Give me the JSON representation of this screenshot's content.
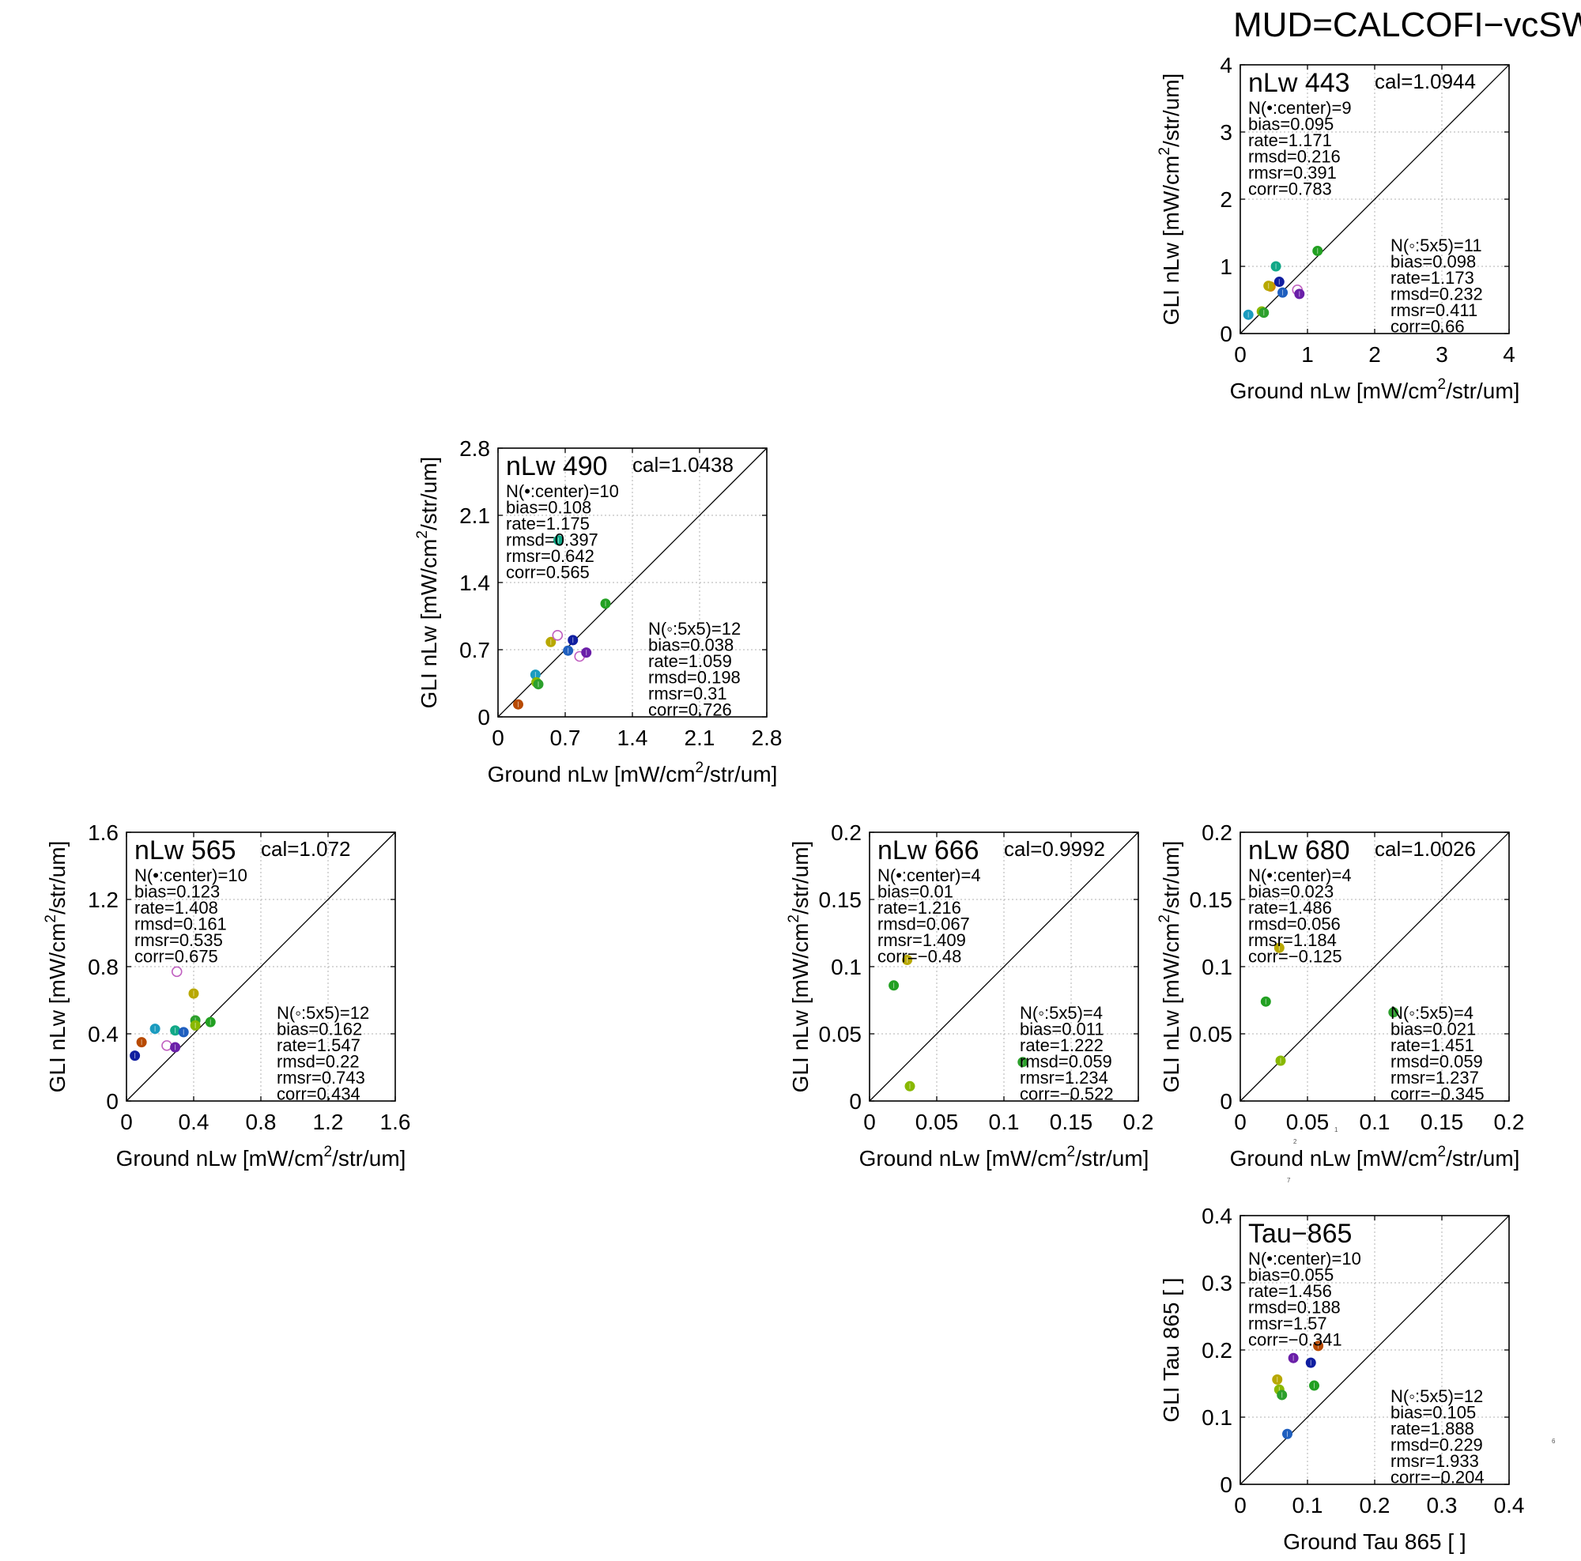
{
  "title": "MUD=CALCOFI−vcSW",
  "stray_marks": [
    "1",
    "2",
    "7",
    "6"
  ],
  "chart_data": [
    {
      "type": "scatter",
      "title": "nLw 443",
      "cal": "cal=1.0944",
      "xlabel": "Ground nLw [mW/cm²/str/um]",
      "ylabel": "GLI nLw [mW/cm²/str/um]",
      "xlim": [
        0,
        4
      ],
      "ylim": [
        0,
        4
      ],
      "xticks": [
        "0",
        "1",
        "2",
        "3",
        "4"
      ],
      "yticks": [
        "0",
        "1",
        "2",
        "3",
        "4"
      ],
      "grid": true,
      "one_to_one_line": true,
      "stats_center": [
        "N(•:center)=9",
        "bias=0.095",
        "rate=1.171",
        "rmsd=0.216",
        "rmsr=0.391",
        "corr=0.783"
      ],
      "stats_5x5": [
        "N(◦:5x5)=11",
        "bias=0.098",
        "rate=1.173",
        "rmsd=0.232",
        "rmsr=0.411",
        "corr=0.66"
      ],
      "points": [
        {
          "x": 0.12,
          "y": 0.28,
          "color": "#1a9bbf",
          "open": false
        },
        {
          "x": 0.32,
          "y": 0.33,
          "color": "#88b800",
          "open": false
        },
        {
          "x": 0.35,
          "y": 0.31,
          "color": "#2ca02c",
          "open": false
        },
        {
          "x": 0.45,
          "y": 0.7,
          "color": "#d08a00",
          "open": false
        },
        {
          "x": 0.42,
          "y": 0.71,
          "color": "#b8a800",
          "open": false
        },
        {
          "x": 0.53,
          "y": 1.0,
          "color": "#11a887",
          "open": false
        },
        {
          "x": 0.58,
          "y": 0.77,
          "color": "#101ea0",
          "open": false
        },
        {
          "x": 0.63,
          "y": 0.61,
          "color": "#1f5fbf",
          "open": false
        },
        {
          "x": 0.85,
          "y": 0.65,
          "color": "#c060c0",
          "open": true
        },
        {
          "x": 0.88,
          "y": 0.59,
          "color": "#6a1fa8",
          "open": false
        },
        {
          "x": 1.15,
          "y": 1.23,
          "color": "#22a022",
          "open": false
        }
      ]
    },
    {
      "type": "scatter",
      "title": "nLw 490",
      "cal": "cal=1.0438",
      "xlabel": "Ground nLw [mW/cm²/str/um]",
      "ylabel": "GLI nLw [mW/cm²/str/um]",
      "xlim": [
        0,
        2.8
      ],
      "ylim": [
        0,
        2.8
      ],
      "xticks": [
        "0",
        "0.7",
        "1.4",
        "2.1",
        "2.8"
      ],
      "yticks": [
        "0",
        "0.7",
        "1.4",
        "2.1",
        "2.8"
      ],
      "grid": true,
      "one_to_one_line": true,
      "stats_center": [
        "N(•:center)=10",
        "bias=0.108",
        "rate=1.175",
        "rmsd=0.397",
        "rmsr=0.642",
        "corr=0.565"
      ],
      "stats_5x5": [
        "N(◦:5x5)=12",
        "bias=0.038",
        "rate=1.059",
        "rmsd=0.198",
        "rmsr=0.31",
        "corr=0.726"
      ],
      "points": [
        {
          "x": 0.21,
          "y": 0.13,
          "color": "#b84a00",
          "open": false
        },
        {
          "x": 0.39,
          "y": 0.44,
          "color": "#1a9bbf",
          "open": false
        },
        {
          "x": 0.4,
          "y": 0.36,
          "color": "#88b800",
          "open": false
        },
        {
          "x": 0.42,
          "y": 0.34,
          "color": "#2ca02c",
          "open": false
        },
        {
          "x": 0.55,
          "y": 0.78,
          "color": "#b8a800",
          "open": false
        },
        {
          "x": 0.62,
          "y": 0.85,
          "color": "#c060c0",
          "open": true
        },
        {
          "x": 0.63,
          "y": 1.84,
          "color": "#11a887",
          "open": false
        },
        {
          "x": 0.73,
          "y": 0.69,
          "color": "#1f5fbf",
          "open": false
        },
        {
          "x": 0.78,
          "y": 0.8,
          "color": "#101ea0",
          "open": false
        },
        {
          "x": 0.85,
          "y": 0.63,
          "color": "#c060c0",
          "open": true
        },
        {
          "x": 0.92,
          "y": 0.67,
          "color": "#6a1fa8",
          "open": false
        },
        {
          "x": 1.12,
          "y": 1.18,
          "color": "#22a022",
          "open": false
        }
      ]
    },
    {
      "type": "scatter",
      "title": "nLw 565",
      "cal": "cal=1.072",
      "xlabel": "Ground nLw [mW/cm²/str/um]",
      "ylabel": "GLI nLw [mW/cm²/str/um]",
      "xlim": [
        0,
        1.6
      ],
      "ylim": [
        0,
        1.6
      ],
      "xticks": [
        "0",
        "0.4",
        "0.8",
        "1.2",
        "1.6"
      ],
      "yticks": [
        "0",
        "0.4",
        "0.8",
        "1.2",
        "1.6"
      ],
      "grid": true,
      "one_to_one_line": true,
      "stats_center": [
        "N(•:center)=10",
        "bias=0.123",
        "rate=1.408",
        "rmsd=0.161",
        "rmsr=0.535",
        "corr=0.675"
      ],
      "stats_5x5": [
        "N(◦:5x5)=12",
        "bias=0.162",
        "rate=1.547",
        "rmsd=0.22",
        "rmsr=0.743",
        "corr=0.434"
      ],
      "points": [
        {
          "x": 0.05,
          "y": 0.27,
          "color": "#101ea0",
          "open": false
        },
        {
          "x": 0.09,
          "y": 0.35,
          "color": "#b84a00",
          "open": false
        },
        {
          "x": 0.17,
          "y": 0.43,
          "color": "#1a9bbf",
          "open": false
        },
        {
          "x": 0.24,
          "y": 0.33,
          "color": "#c060c0",
          "open": true
        },
        {
          "x": 0.29,
          "y": 0.42,
          "color": "#11a887",
          "open": false
        },
        {
          "x": 0.29,
          "y": 0.32,
          "color": "#6a1fa8",
          "open": false
        },
        {
          "x": 0.3,
          "y": 0.77,
          "color": "#c060c0",
          "open": true
        },
        {
          "x": 0.34,
          "y": 0.41,
          "color": "#1f5fbf",
          "open": false
        },
        {
          "x": 0.4,
          "y": 0.64,
          "color": "#b8a800",
          "open": false
        },
        {
          "x": 0.41,
          "y": 0.48,
          "color": "#2ca02c",
          "open": false
        },
        {
          "x": 0.41,
          "y": 0.45,
          "color": "#88b800",
          "open": false
        },
        {
          "x": 0.5,
          "y": 0.47,
          "color": "#22a022",
          "open": false
        }
      ]
    },
    {
      "type": "scatter",
      "title": "nLw 666",
      "cal": "cal=0.9992",
      "xlabel": "Ground nLw [mW/cm²/str/um]",
      "ylabel": "GLI nLw [mW/cm²/str/um]",
      "xlim": [
        0,
        0.2
      ],
      "ylim": [
        0,
        0.2
      ],
      "xticks": [
        "0",
        "0.05",
        "0.1",
        "0.15",
        "0.2"
      ],
      "yticks": [
        "0",
        "0.05",
        "0.1",
        "0.15",
        "0.2"
      ],
      "grid": true,
      "one_to_one_line": true,
      "stats_center": [
        "N(•:center)=4",
        "bias=0.01",
        "rate=1.216",
        "rmsd=0.067",
        "rmsr=1.409",
        "corr=−0.48"
      ],
      "stats_5x5": [
        "N(◦:5x5)=4",
        "bias=0.011",
        "rate=1.222",
        "rmsd=0.059",
        "rmsr=1.234",
        "corr=−0.522"
      ],
      "points": [
        {
          "x": 0.018,
          "y": 0.086,
          "color": "#22a022",
          "open": false
        },
        {
          "x": 0.028,
          "y": 0.105,
          "color": "#b8a800",
          "open": false
        },
        {
          "x": 0.03,
          "y": 0.011,
          "color": "#88b800",
          "open": false
        },
        {
          "x": 0.114,
          "y": 0.029,
          "color": "#2ca02c",
          "open": false
        }
      ]
    },
    {
      "type": "scatter",
      "title": "nLw 680",
      "cal": "cal=1.0026",
      "xlabel": "Ground nLw [mW/cm²/str/um]",
      "ylabel": "GLI nLw [mW/cm²/str/um]",
      "xlim": [
        0,
        0.2
      ],
      "ylim": [
        0,
        0.2
      ],
      "xticks": [
        "0",
        "0.05",
        "0.1",
        "0.15",
        "0.2"
      ],
      "yticks": [
        "0",
        "0.05",
        "0.1",
        "0.15",
        "0.2"
      ],
      "grid": true,
      "one_to_one_line": true,
      "stats_center": [
        "N(•:center)=4",
        "bias=0.023",
        "rate=1.486",
        "rmsd=0.056",
        "rmsr=1.184",
        "corr=−0.125"
      ],
      "stats_5x5": [
        "N(◦:5x5)=4",
        "bias=0.021",
        "rate=1.451",
        "rmsd=0.059",
        "rmsr=1.237",
        "corr=−0.345"
      ],
      "points": [
        {
          "x": 0.019,
          "y": 0.074,
          "color": "#22a022",
          "open": false
        },
        {
          "x": 0.029,
          "y": 0.114,
          "color": "#b8a800",
          "open": false
        },
        {
          "x": 0.03,
          "y": 0.03,
          "color": "#88b800",
          "open": false
        },
        {
          "x": 0.114,
          "y": 0.066,
          "color": "#2ca02c",
          "open": false
        }
      ]
    },
    {
      "type": "scatter",
      "title": "Tau−865",
      "cal": "",
      "xlabel": "Ground Tau 865 [ ]",
      "ylabel": "GLI Tau 865 [ ]",
      "xlim": [
        0,
        0.4
      ],
      "ylim": [
        0,
        0.4
      ],
      "xticks": [
        "0",
        "0.1",
        "0.2",
        "0.3",
        "0.4"
      ],
      "yticks": [
        "0",
        "0.1",
        "0.2",
        "0.3",
        "0.4"
      ],
      "grid": true,
      "one_to_one_line": true,
      "stats_center": [
        "N(•:center)=10",
        "bias=0.055",
        "rate=1.456",
        "rmsd=0.188",
        "rmsr=1.57",
        "corr=−0.341"
      ],
      "stats_5x5": [
        "N(◦:5x5)=12",
        "bias=0.105",
        "rate=1.888",
        "rmsd=0.229",
        "rmsr=1.933",
        "corr=−0.204"
      ],
      "points": [
        {
          "x": 0.055,
          "y": 0.156,
          "color": "#b8a800",
          "open": false
        },
        {
          "x": 0.058,
          "y": 0.141,
          "color": "#88b800",
          "open": false
        },
        {
          "x": 0.062,
          "y": 0.133,
          "color": "#2ca02c",
          "open": false
        },
        {
          "x": 0.07,
          "y": 0.075,
          "color": "#1f5fbf",
          "open": false
        },
        {
          "x": 0.079,
          "y": 0.188,
          "color": "#6a1fa8",
          "open": false
        },
        {
          "x": 0.105,
          "y": 0.181,
          "color": "#101ea0",
          "open": false
        },
        {
          "x": 0.11,
          "y": 0.147,
          "color": "#22a022",
          "open": false
        },
        {
          "x": 0.116,
          "y": 0.206,
          "color": "#b84a00",
          "open": false
        }
      ]
    }
  ]
}
